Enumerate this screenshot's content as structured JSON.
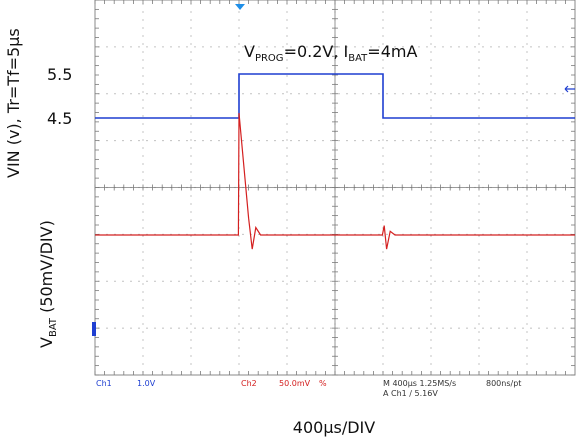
{
  "chart_data": {
    "type": "line",
    "title_parts": [
      "V",
      "PROG",
      "=0.2V, I",
      "BAT",
      "=4mA"
    ],
    "xlabel": "400µs/DIV",
    "ylabel_top": "VIN (v), Tr=Tf=5µs",
    "ylabel_bottom_parts": [
      "V",
      "BAT",
      " (50mV/DIV)"
    ],
    "x_range_us": [
      0,
      4000
    ],
    "vin_ticks": [
      {
        "label": "5.5",
        "value": 5.5
      },
      {
        "label": "4.5",
        "value": 4.5
      }
    ],
    "vin_scale_v_per_div": 1.0,
    "vbat_scale_mv_per_div": 50,
    "series": [
      {
        "name": "Ch1",
        "color": "#1f3fd1",
        "units": "V",
        "points": [
          [
            0,
            4.5
          ],
          [
            1200,
            4.5
          ],
          [
            1200,
            5.5
          ],
          [
            2400,
            5.5
          ],
          [
            2400,
            4.5
          ],
          [
            4000,
            4.5
          ]
        ]
      },
      {
        "name": "Ch2",
        "color": "#d42020",
        "units": "mV (relative to baseline)",
        "points": [
          [
            0,
            0
          ],
          [
            1195,
            0
          ],
          [
            1200,
            130
          ],
          [
            1280,
            18
          ],
          [
            1310,
            -15
          ],
          [
            1340,
            8
          ],
          [
            1380,
            0
          ],
          [
            2395,
            0
          ],
          [
            2410,
            10
          ],
          [
            2430,
            -15
          ],
          [
            2460,
            4
          ],
          [
            2500,
            0
          ],
          [
            4000,
            0
          ]
        ]
      }
    ],
    "status_bar": {
      "ch1": "Ch1",
      "ch1_scale": "1.0V",
      "ch2": "Ch2",
      "ch2_scale": "50.0mV",
      "ch2_coupling": "%",
      "timebase": "M 400µs 1.25MS/s",
      "sample": "800ns/pt",
      "trigger": "A  Ch1  ∕  5.16V"
    },
    "grid": true
  }
}
